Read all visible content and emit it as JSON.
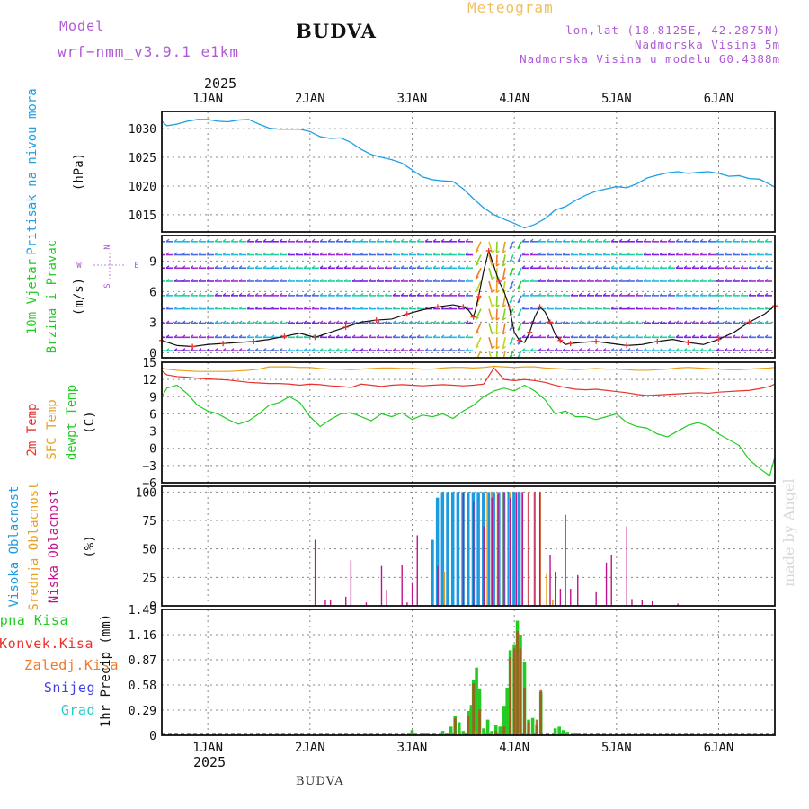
{
  "header": {
    "model_label": "Model",
    "model_value": "wrf−nmm_v3.9.1  e1km",
    "title": "BUDVA",
    "meteogram": "Meteogram",
    "lonlat": "lon,lat (18.8125E, 42.2875N)",
    "elevation": "Nadmorska Visina 5m",
    "model_elevation": "Nadmorska Visina u modelu 60.4388m",
    "year_top": "2025",
    "year_bottom": "2025",
    "footer": "BUDVA",
    "watermark": "made by Angel"
  },
  "colors": {
    "pressure": "#1ca0e6",
    "wind_speed": "#111111",
    "wind_marker": "#e8322b",
    "temp2m": "#e8322b",
    "sfc_temp": "#e8a020",
    "dewpt": "#22cc22",
    "high_cloud": "#1c9be0",
    "mid_cloud": "#e8a020",
    "low_cloud": "#c0148c",
    "precip_total": "#22cc22",
    "precip_conv": "#e8322b",
    "purple": "#b05ad6"
  },
  "chart_data": [
    {
      "type": "line",
      "id": "pressure",
      "ylabel_1": "Pritisak na nivou mora",
      "ylabel_2": "(hPa)",
      "x_unit": "day (1.0 = 1 Jan 2025 00:00)",
      "xlim": [
        0.55,
        6.55
      ],
      "ylim": [
        1012,
        1033
      ],
      "yticks": [
        1015,
        1020,
        1025,
        1030
      ],
      "x": [
        0.55,
        0.6,
        0.7,
        0.8,
        0.9,
        1.0,
        1.1,
        1.2,
        1.3,
        1.4,
        1.5,
        1.6,
        1.7,
        1.8,
        1.9,
        2.0,
        2.1,
        2.2,
        2.3,
        2.4,
        2.5,
        2.6,
        2.7,
        2.8,
        2.9,
        3.0,
        3.1,
        3.2,
        3.3,
        3.4,
        3.5,
        3.6,
        3.7,
        3.8,
        3.9,
        4.0,
        4.1,
        4.2,
        4.3,
        4.4,
        4.5,
        4.6,
        4.7,
        4.8,
        4.9,
        5.0,
        5.1,
        5.2,
        5.3,
        5.4,
        5.5,
        5.6,
        5.7,
        5.8,
        5.9,
        6.0,
        6.1,
        6.2,
        6.3,
        6.4,
        6.5,
        6.55
      ],
      "y": [
        1031.3,
        1030.5,
        1030.8,
        1031.3,
        1031.6,
        1031.6,
        1031.3,
        1031.2,
        1031.5,
        1031.6,
        1030.8,
        1030.1,
        1029.9,
        1029.9,
        1029.9,
        1029.5,
        1028.6,
        1028.3,
        1028.4,
        1027.6,
        1026.4,
        1025.5,
        1025.0,
        1024.6,
        1024.0,
        1022.8,
        1021.6,
        1021.1,
        1020.9,
        1020.8,
        1019.5,
        1017.8,
        1016.2,
        1015.0,
        1014.2,
        1013.5,
        1012.7,
        1013.3,
        1014.3,
        1015.8,
        1016.4,
        1017.5,
        1018.4,
        1019.1,
        1019.5,
        1019.9,
        1019.7,
        1020.4,
        1021.4,
        1021.9,
        1022.3,
        1022.5,
        1022.2,
        1022.4,
        1022.5,
        1022.2,
        1021.7,
        1021.8,
        1021.3,
        1021.2,
        1020.3,
        1019.8
      ]
    },
    {
      "type": "line",
      "id": "wind",
      "ylabel_1": "10m Vjetar",
      "ylabel_2": "Brzina i Pravac",
      "ylabel_3": "(m/s)",
      "compass": {
        "n": "N",
        "s": "S",
        "e": "E",
        "w": "W"
      },
      "xlim": [
        0.55,
        6.55
      ],
      "ylim": [
        -0.5,
        11.5
      ],
      "yticks": [
        0,
        3,
        6,
        9
      ],
      "x": [
        0.55,
        0.7,
        0.85,
        1.0,
        1.15,
        1.3,
        1.45,
        1.6,
        1.75,
        1.9,
        2.05,
        2.2,
        2.35,
        2.5,
        2.65,
        2.8,
        2.95,
        3.1,
        3.25,
        3.4,
        3.5,
        3.55,
        3.6,
        3.62,
        3.65,
        3.7,
        3.75,
        3.8,
        3.85,
        3.9,
        3.95,
        4.0,
        4.05,
        4.1,
        4.15,
        4.2,
        4.25,
        4.3,
        4.35,
        4.4,
        4.45,
        4.5,
        4.55,
        4.65,
        4.8,
        4.95,
        5.1,
        5.25,
        5.4,
        5.55,
        5.7,
        5.85,
        6.0,
        6.15,
        6.3,
        6.45,
        6.55
      ],
      "y": [
        1.2,
        0.7,
        0.6,
        0.8,
        0.9,
        1.0,
        1.1,
        1.3,
        1.6,
        1.9,
        1.5,
        2.0,
        2.5,
        3.0,
        3.2,
        3.3,
        3.8,
        4.2,
        4.5,
        4.7,
        4.5,
        4.2,
        3.5,
        4.2,
        5.5,
        8.0,
        10.0,
        8.5,
        7.0,
        6.0,
        4.5,
        2.0,
        1.2,
        1.0,
        2.0,
        3.5,
        4.5,
        4.0,
        3.0,
        1.8,
        1.2,
        0.8,
        0.9,
        1.0,
        1.1,
        0.9,
        0.7,
        0.8,
        1.1,
        1.3,
        1.0,
        0.8,
        1.3,
        2.0,
        3.0,
        3.8,
        4.6
      ],
      "barb_rows": [
        0.2,
        1.5,
        2.9,
        4.3,
        5.6,
        7.0,
        8.3,
        9.6,
        10.9
      ]
    },
    {
      "type": "line",
      "id": "temperature",
      "ylabel_1": "2m Temp",
      "ylabel_2": "SFC Temp",
      "ylabel_3": "dewpt Temp",
      "ylabel_4": "(C)",
      "xlim": [
        0.55,
        6.55
      ],
      "ylim": [
        -6,
        15
      ],
      "yticks": [
        -6,
        -3,
        0,
        3,
        6,
        9,
        12,
        15
      ],
      "x": [
        0.55,
        0.6,
        0.7,
        0.8,
        0.9,
        1.0,
        1.1,
        1.2,
        1.3,
        1.4,
        1.5,
        1.6,
        1.7,
        1.8,
        1.9,
        2.0,
        2.1,
        2.2,
        2.3,
        2.4,
        2.5,
        2.6,
        2.7,
        2.8,
        2.9,
        3.0,
        3.1,
        3.2,
        3.3,
        3.4,
        3.5,
        3.6,
        3.7,
        3.8,
        3.9,
        4.0,
        4.1,
        4.2,
        4.3,
        4.4,
        4.5,
        4.6,
        4.7,
        4.8,
        4.9,
        5.0,
        5.1,
        5.2,
        5.3,
        5.4,
        5.5,
        5.6,
        5.7,
        5.8,
        5.9,
        6.0,
        6.1,
        6.2,
        6.3,
        6.4,
        6.5,
        6.55
      ],
      "series": [
        {
          "key": "temp2m",
          "values": [
            13.5,
            12.8,
            12.5,
            12.4,
            12.2,
            12.1,
            12.0,
            11.9,
            11.7,
            11.5,
            11.4,
            11.3,
            11.3,
            11.2,
            11.0,
            11.2,
            11.1,
            10.9,
            10.8,
            10.6,
            11.2,
            11.0,
            10.8,
            11.0,
            11.1,
            11.0,
            10.9,
            11.0,
            11.1,
            11.0,
            10.9,
            11.0,
            11.2,
            14.0,
            12.0,
            11.8,
            12.0,
            11.8,
            11.5,
            11.0,
            10.6,
            10.3,
            10.2,
            10.3,
            10.1,
            9.9,
            9.7,
            9.4,
            9.2,
            9.3,
            9.4,
            9.5,
            9.6,
            9.7,
            9.6,
            9.8,
            9.9,
            10.0,
            10.1,
            10.4,
            10.8,
            11.2
          ]
        },
        {
          "key": "sfc_temp",
          "values": [
            14.0,
            13.8,
            13.6,
            13.5,
            13.4,
            13.4,
            13.4,
            13.4,
            13.5,
            13.6,
            13.8,
            14.2,
            14.2,
            14.2,
            14.1,
            14.1,
            13.9,
            13.8,
            13.8,
            13.7,
            13.8,
            13.9,
            14.0,
            14.0,
            13.9,
            13.9,
            13.8,
            13.8,
            14.0,
            14.1,
            14.1,
            14.0,
            14.1,
            14.3,
            14.2,
            14.1,
            14.2,
            14.2,
            14.0,
            13.9,
            13.8,
            13.7,
            13.8,
            13.9,
            13.8,
            13.8,
            13.7,
            13.6,
            13.6,
            13.7,
            13.8,
            14.0,
            14.1,
            14.0,
            13.9,
            13.8,
            13.7,
            13.7,
            13.8,
            13.9,
            14.0,
            14.1
          ]
        },
        {
          "key": "dewpt",
          "values": [
            9.0,
            10.5,
            11.0,
            9.5,
            7.5,
            6.5,
            6.0,
            5.0,
            4.2,
            4.8,
            6.0,
            7.5,
            8.0,
            9.0,
            8.0,
            5.5,
            3.8,
            5.0,
            6.0,
            6.2,
            5.5,
            4.8,
            6.0,
            5.5,
            6.2,
            5.0,
            5.8,
            5.5,
            6.0,
            5.2,
            6.5,
            7.5,
            9.0,
            10.0,
            10.5,
            10.0,
            11.0,
            10.0,
            8.5,
            6.0,
            6.5,
            5.5,
            5.5,
            5.0,
            5.5,
            6.0,
            4.5,
            3.8,
            3.5,
            2.5,
            2.0,
            3.0,
            4.0,
            4.5,
            3.8,
            2.5,
            1.5,
            0.5,
            -2.0,
            -3.5,
            -4.8,
            -1.5
          ]
        }
      ]
    },
    {
      "type": "bar",
      "id": "clouds",
      "ylabel_1": "Visoka Oblacnost",
      "ylabel_2": "Srednja Oblacnost",
      "ylabel_3": "Niska Oblacnost",
      "ylabel_4": "(%)",
      "xlim": [
        0.55,
        6.55
      ],
      "ylim": [
        0,
        105
      ],
      "yticks": [
        0,
        25,
        50,
        75,
        100
      ],
      "high": [
        [
          3.2,
          58
        ],
        [
          3.25,
          95
        ],
        [
          3.3,
          100
        ],
        [
          3.35,
          100
        ],
        [
          3.4,
          100
        ],
        [
          3.45,
          100
        ],
        [
          3.5,
          100
        ],
        [
          3.55,
          100
        ],
        [
          3.6,
          100
        ],
        [
          3.65,
          100
        ],
        [
          3.7,
          100
        ],
        [
          3.75,
          100
        ],
        [
          3.8,
          100
        ],
        [
          3.85,
          100
        ],
        [
          3.9,
          100
        ],
        [
          3.95,
          100
        ],
        [
          4.0,
          100
        ],
        [
          4.05,
          100
        ]
      ],
      "mid": [
        [
          3.3,
          30
        ],
        [
          3.72,
          100
        ],
        [
          3.76,
          100
        ],
        [
          3.82,
          100
        ],
        [
          3.88,
          100
        ],
        [
          3.94,
          100
        ],
        [
          4.0,
          100
        ],
        [
          4.06,
          100
        ],
        [
          4.12,
          100
        ],
        [
          4.18,
          100
        ],
        [
          4.24,
          100
        ],
        [
          4.3,
          28
        ],
        [
          4.36,
          5
        ]
      ],
      "low": [
        [
          2.05,
          58
        ],
        [
          2.15,
          5
        ],
        [
          2.2,
          5
        ],
        [
          2.35,
          8
        ],
        [
          2.4,
          40
        ],
        [
          2.55,
          3
        ],
        [
          2.7,
          35
        ],
        [
          2.75,
          14
        ],
        [
          2.9,
          36
        ],
        [
          2.95,
          3
        ],
        [
          3.0,
          20
        ],
        [
          3.05,
          62
        ],
        [
          3.25,
          35
        ],
        [
          3.5,
          100
        ],
        [
          3.6,
          92
        ],
        [
          3.7,
          70
        ],
        [
          3.78,
          95
        ],
        [
          3.84,
          98
        ],
        [
          3.9,
          100
        ],
        [
          3.96,
          95
        ],
        [
          4.02,
          100
        ],
        [
          4.08,
          100
        ],
        [
          4.14,
          100
        ],
        [
          4.2,
          100
        ],
        [
          4.25,
          100
        ],
        [
          4.35,
          45
        ],
        [
          4.4,
          30
        ],
        [
          4.45,
          15
        ],
        [
          4.5,
          80
        ],
        [
          4.55,
          15
        ],
        [
          4.62,
          27
        ],
        [
          4.8,
          12
        ],
        [
          4.9,
          38
        ],
        [
          4.95,
          45
        ],
        [
          5.1,
          70
        ],
        [
          5.15,
          6
        ],
        [
          5.25,
          5
        ],
        [
          5.35,
          4
        ],
        [
          5.6,
          2
        ]
      ]
    },
    {
      "type": "bar",
      "id": "precip",
      "legend": [
        "Ukupna  Kisa",
        "Konvek.Kisa",
        "Zaledj.Kisa",
        "Snijeg",
        "Grad"
      ],
      "ylabel_1": "1hr Precip (mm)",
      "xlim": [
        0.55,
        6.55
      ],
      "ylim": [
        0,
        1.45
      ],
      "yticks": [
        0,
        0.29,
        0.58,
        0.87,
        1.16,
        1.45
      ],
      "total": [
        [
          3.0,
          0.06
        ],
        [
          3.12,
          0.02
        ],
        [
          3.3,
          0.05
        ],
        [
          3.38,
          0.1
        ],
        [
          3.42,
          0.22
        ],
        [
          3.46,
          0.15
        ],
        [
          3.5,
          0.05
        ],
        [
          3.55,
          0.28
        ],
        [
          3.58,
          0.35
        ],
        [
          3.6,
          0.64
        ],
        [
          3.63,
          0.78
        ],
        [
          3.66,
          0.54
        ],
        [
          3.7,
          0.08
        ],
        [
          3.74,
          0.18
        ],
        [
          3.78,
          0.05
        ],
        [
          3.82,
          0.12
        ],
        [
          3.86,
          0.1
        ],
        [
          3.9,
          0.34
        ],
        [
          3.93,
          0.55
        ],
        [
          3.96,
          0.98
        ],
        [
          4.0,
          1.05
        ],
        [
          4.03,
          1.32
        ],
        [
          4.06,
          1.16
        ],
        [
          4.1,
          0.85
        ],
        [
          4.14,
          0.18
        ],
        [
          4.18,
          0.2
        ],
        [
          4.22,
          0.12
        ],
        [
          4.26,
          0.5
        ],
        [
          4.4,
          0.08
        ],
        [
          4.44,
          0.1
        ],
        [
          4.48,
          0.06
        ],
        [
          4.52,
          0.04
        ],
        [
          4.6,
          0.02
        ]
      ],
      "conv": [
        [
          3.42,
          0.2
        ],
        [
          3.55,
          0.22
        ],
        [
          3.6,
          0.6
        ],
        [
          3.66,
          0.3
        ],
        [
          3.82,
          0.05
        ],
        [
          3.9,
          0.1
        ],
        [
          3.96,
          0.9
        ],
        [
          4.0,
          1.0
        ],
        [
          4.03,
          1.2
        ],
        [
          4.06,
          1.0
        ],
        [
          4.1,
          0.55
        ],
        [
          4.14,
          0.15
        ],
        [
          4.22,
          0.18
        ],
        [
          4.26,
          0.52
        ]
      ],
      "frz": [
        [
          3.62,
          0.05
        ],
        [
          4.05,
          0.03
        ]
      ],
      "legend_colors": [
        "#22cc22",
        "#e8322b",
        "#f07a2a",
        "#4040e8",
        "#22cccc"
      ]
    }
  ],
  "x_axis": {
    "ticks": [
      1,
      2,
      3,
      4,
      5,
      6
    ],
    "labels": [
      "1JAN",
      "2JAN",
      "3JAN",
      "4JAN",
      "5JAN",
      "6JAN"
    ]
  }
}
